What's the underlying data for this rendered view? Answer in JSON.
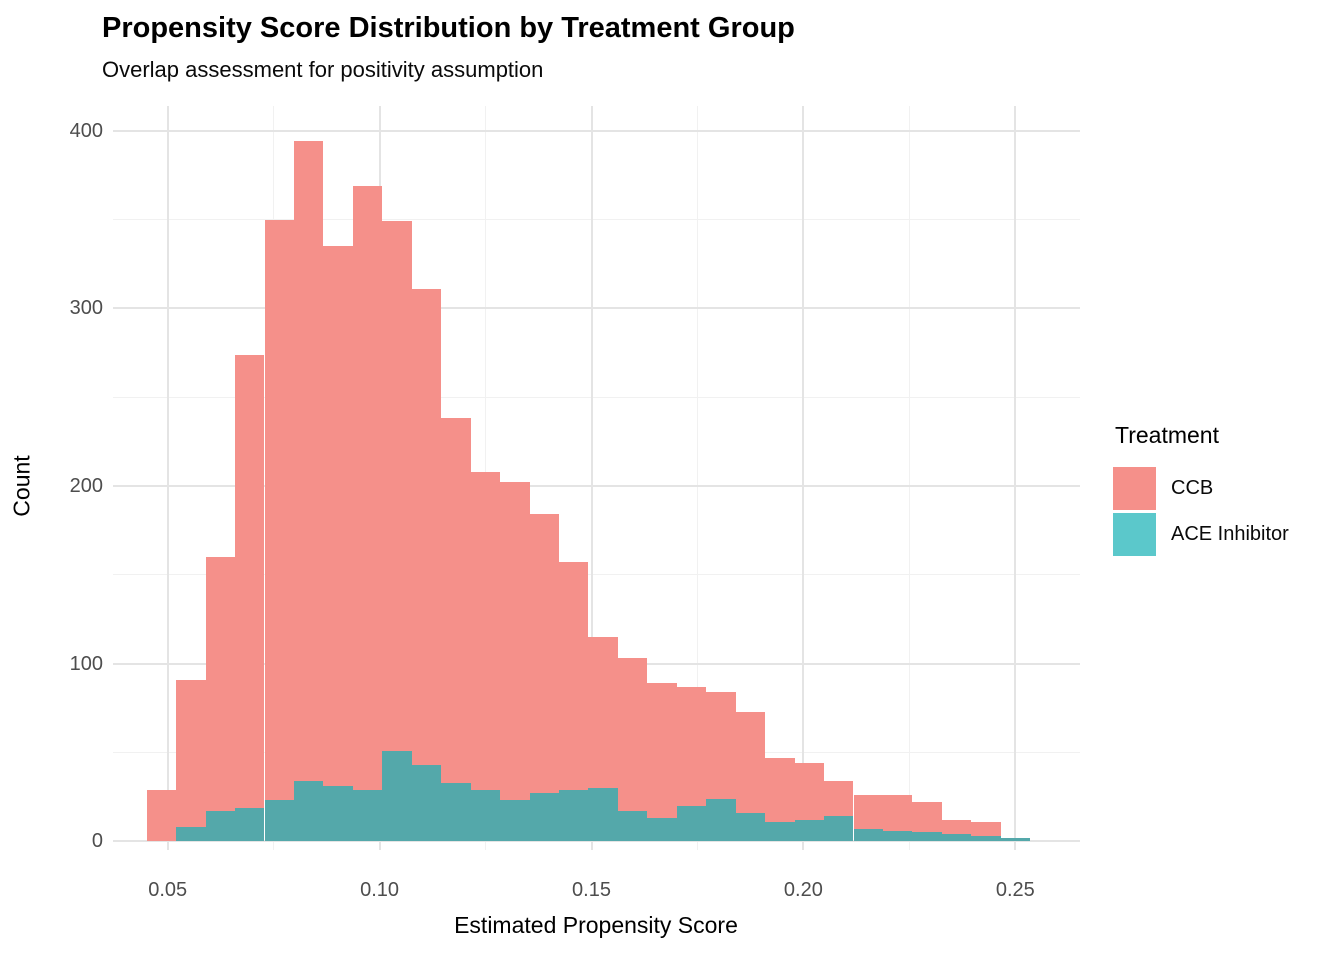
{
  "title": "Propensity Score Distribution by Treatment Group",
  "subtitle": "Overlap assessment for positivity assumption",
  "axes": {
    "x_label": "Estimated Propensity Score",
    "y_label": "Count",
    "x_ticks": [
      "0.05",
      "0.10",
      "0.15",
      "0.20",
      "0.25"
    ],
    "x_tick_values": [
      0.05,
      0.1,
      0.15,
      0.2,
      0.25
    ],
    "x_minor_values": [
      0.075,
      0.125,
      0.175,
      0.225
    ],
    "y_ticks": [
      "0",
      "100",
      "200",
      "300",
      "400"
    ],
    "y_tick_values": [
      0,
      100,
      200,
      300,
      400
    ],
    "y_minor_values": [
      50,
      150,
      250,
      350
    ]
  },
  "legend": {
    "title": "Treatment",
    "entries": [
      {
        "label": "CCB",
        "color": "#F5908A"
      },
      {
        "label": "ACE Inhibitor",
        "color": "#5BC8CB"
      }
    ]
  },
  "colors": {
    "background": "#FFFFFF",
    "bar_ccb": "#F5908A",
    "bar_ace_overlap": "#54A8AA",
    "grid_major": "#E4E4E4",
    "grid_minor": "#F1F1F1",
    "tick_text": "#4D4D4D"
  },
  "chart_data": {
    "type": "bar",
    "subtype": "overlaid-histogram",
    "title": "Propensity Score Distribution by Treatment Group",
    "subtitle": "Overlap assessment for positivity assumption",
    "xlabel": "Estimated Propensity Score",
    "ylabel": "Count",
    "bin_start": 0.045,
    "bin_width": 0.007,
    "n_bins": 30,
    "xlim": [
      0.04,
      0.265
    ],
    "ylim": [
      0,
      415
    ],
    "grid": true,
    "legend_position": "right",
    "series": [
      {
        "name": "CCB",
        "color": "#F5908A",
        "values": [
          29,
          91,
          160,
          274,
          350,
          394,
          335,
          369,
          349,
          311,
          238,
          208,
          202,
          184,
          157,
          115,
          103,
          89,
          87,
          84,
          73,
          47,
          44,
          34,
          26,
          26,
          22,
          12,
          11,
          0
        ]
      },
      {
        "name": "ACE Inhibitor",
        "color": "#54A8AA",
        "values": [
          0,
          8,
          17,
          19,
          23,
          34,
          31,
          29,
          51,
          43,
          33,
          29,
          23,
          27,
          29,
          30,
          17,
          13,
          20,
          24,
          16,
          11,
          12,
          14,
          7,
          6,
          5,
          4,
          3,
          2
        ]
      }
    ]
  }
}
